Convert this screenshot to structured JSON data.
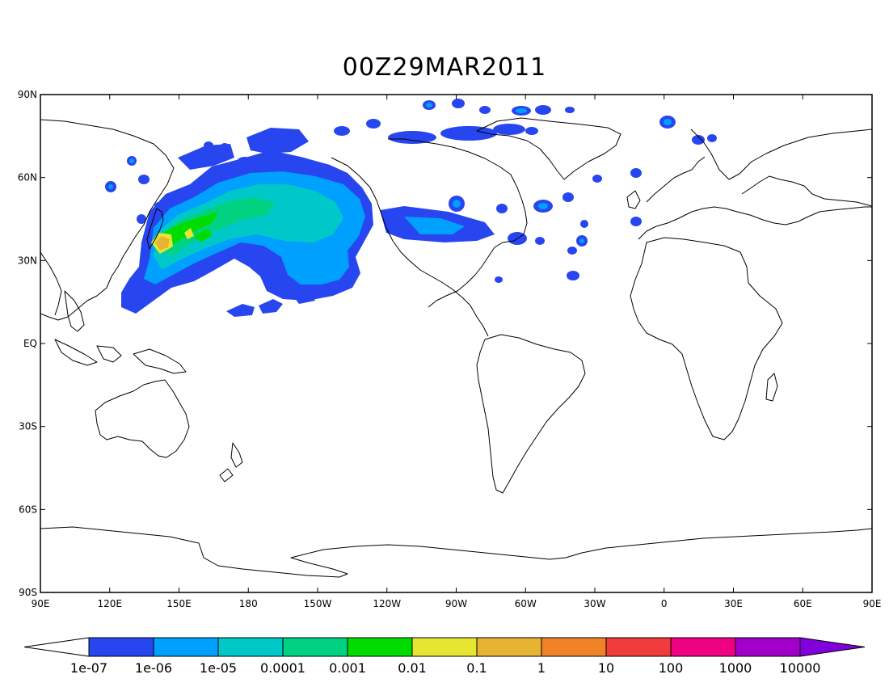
{
  "title": "00Z29MAR2011",
  "map": {
    "lon_range": [
      90,
      450
    ],
    "lat_range": [
      -90,
      90
    ],
    "lat_ticks": [
      "90N",
      "60N",
      "30N",
      "EQ",
      "30S",
      "60S",
      "90S"
    ],
    "lon_ticks": [
      "90E",
      "120E",
      "150E",
      "180",
      "150W",
      "120W",
      "90W",
      "60W",
      "30W",
      "0",
      "30E",
      "60E",
      "90E"
    ]
  },
  "colorbar": {
    "labels": [
      "1e-07",
      "1e-06",
      "1e-05",
      "0.0001",
      "0.001",
      "0.01",
      "0.1",
      "1",
      "10",
      "100",
      "1000",
      "10000"
    ],
    "colors": [
      "#ffffff",
      "#2846f0",
      "#00a0ff",
      "#00c8c8",
      "#00d282",
      "#00dc00",
      "#e6e632",
      "#e6b432",
      "#f08228",
      "#f03c3c",
      "#f00082",
      "#a000c8",
      "#8200dc"
    ]
  },
  "plume": [
    {
      "lon": 141,
      "lat": 37,
      "level": 8
    },
    {
      "lon": 145,
      "lat": 39,
      "level": 6
    },
    {
      "lon": 150,
      "lat": 41,
      "level": 6
    },
    {
      "lon": 160,
      "lat": 45,
      "level": 5
    },
    {
      "lon": 172,
      "lat": 47,
      "level": 4
    },
    {
      "lon": 185,
      "lat": 48,
      "level": 3
    },
    {
      "lon": 200,
      "lat": 45,
      "level": 3
    },
    {
      "lon": 215,
      "lat": 42,
      "level": 2
    },
    {
      "lon": 225,
      "lat": 36,
      "level": 2
    },
    {
      "lon": 235,
      "lat": 45,
      "level": 2
    },
    {
      "lon": 250,
      "lat": 40,
      "level": 1
    },
    {
      "lon": 280,
      "lat": 42,
      "level": 1
    },
    {
      "lon": 230,
      "lat": 22,
      "level": 1
    },
    {
      "lon": 150,
      "lat": 23,
      "level": 1
    }
  ]
}
